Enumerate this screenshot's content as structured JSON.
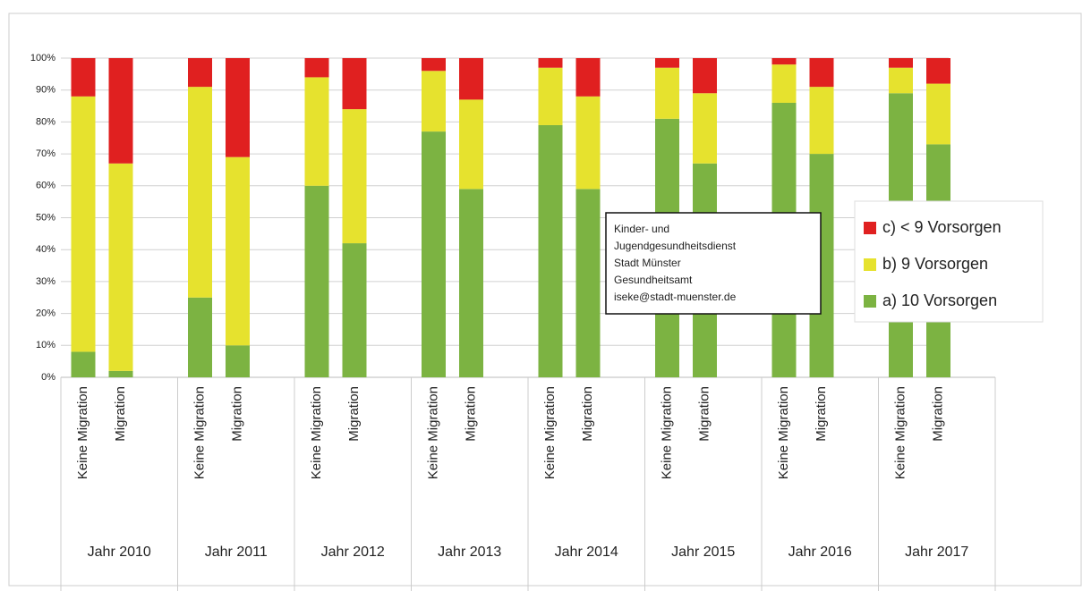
{
  "chart_data": {
    "type": "stacked_bar",
    "categories": [
      "Keine Migration",
      "Migration",
      "Keine Migration",
      "Migration",
      "Keine Migration",
      "Migration",
      "Keine Migration",
      "Migration",
      "Keine Migration",
      "Migration",
      "Keine Migration",
      "Migration",
      "Keine Migration",
      "Migration",
      "Keine Migration",
      "Migration"
    ],
    "groups": [
      "Jahr 2010",
      "Jahr 2011",
      "Jahr 2012",
      "Jahr 2013",
      "Jahr 2014",
      "Jahr 2015",
      "Jahr 2016",
      "Jahr 2017"
    ],
    "series": [
      {
        "name": "a) 10 Vorsorgen",
        "color": "#7cb342",
        "values": [
          8,
          2,
          25,
          10,
          60,
          42,
          77,
          59,
          79,
          59,
          81,
          67,
          86,
          70,
          89,
          73
        ]
      },
      {
        "name": "b) 9 Vorsorgen",
        "color": "#e6e22e",
        "values": [
          80,
          65,
          66,
          59,
          34,
          42,
          19,
          28,
          18,
          29,
          16,
          22,
          12,
          21,
          8,
          19
        ]
      },
      {
        "name": "c) < 9 Vorsorgen",
        "color": "#e02020",
        "values": [
          12,
          33,
          9,
          31,
          6,
          16,
          4,
          13,
          3,
          12,
          3,
          11,
          2,
          9,
          3,
          8
        ]
      }
    ],
    "ylim": [
      0,
      100
    ],
    "yticks": [
      {
        "value": 0,
        "label": "0%"
      },
      {
        "value": 10,
        "label": "10%"
      },
      {
        "value": 20,
        "label": "20%"
      },
      {
        "value": 30,
        "label": "30%"
      },
      {
        "value": 40,
        "label": "40%"
      },
      {
        "value": 50,
        "label": "50%"
      },
      {
        "value": 60,
        "label": "60%"
      },
      {
        "value": 70,
        "label": "70%"
      },
      {
        "value": 80,
        "label": "80%"
      },
      {
        "value": 90,
        "label": "90%"
      },
      {
        "value": 100,
        "label": "100%"
      }
    ],
    "grid": true,
    "annotation": [
      "Kinder- und",
      "Jugendgesundheitsdienst",
      "Stadt Münster",
      "Gesundheitsamt",
      "iseke@stadt-muenster.de"
    ]
  }
}
